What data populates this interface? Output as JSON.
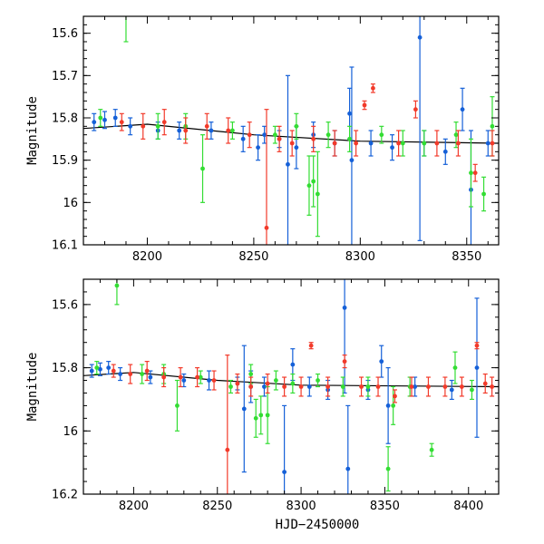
{
  "colors": {
    "blue": "#1560d8",
    "green": "#33dd33",
    "red": "#f23a2a",
    "axis": "#000000"
  },
  "chart_data": [
    {
      "type": "scatter",
      "panel": "top",
      "title": "",
      "xlabel": "",
      "ylabel": "Magnitude",
      "xlim": [
        8170,
        8365
      ],
      "ylim": [
        15.56,
        16.1
      ],
      "y_inverted": true,
      "xticks": [
        8200,
        8250,
        8300,
        8350
      ],
      "yticks": [
        15.6,
        15.7,
        15.8,
        15.9,
        16,
        16.1
      ],
      "ytick_labels": [
        "15.6",
        "15.7",
        "15.8",
        "15.9",
        "16",
        "16.1"
      ],
      "grid": false,
      "legend": "none",
      "trend": {
        "x": [
          8170,
          8200,
          8250,
          8300,
          8365
        ],
        "y": [
          15.825,
          15.815,
          15.84,
          15.855,
          15.86
        ]
      },
      "series": [
        {
          "color_key": "blue",
          "x": [
            8175,
            8180,
            8185,
            8192,
            8205,
            8215,
            8230,
            8245,
            8252,
            8255,
            8262,
            8266,
            8270,
            8278,
            8288,
            8295,
            8296,
            8305,
            8315,
            8328,
            8330,
            8340,
            8348,
            8352,
            8360
          ],
          "y": [
            15.81,
            15.805,
            15.8,
            15.82,
            15.83,
            15.83,
            15.83,
            15.85,
            15.87,
            15.84,
            15.85,
            15.91,
            15.87,
            15.84,
            15.86,
            15.79,
            15.9,
            15.86,
            15.87,
            15.61,
            15.86,
            15.88,
            15.78,
            15.97,
            15.86
          ],
          "err": [
            0.02,
            0.02,
            0.02,
            0.02,
            0.02,
            0.02,
            0.02,
            0.03,
            0.03,
            0.02,
            0.02,
            0.21,
            0.05,
            0.03,
            0.03,
            0.06,
            0.22,
            0.03,
            0.03,
            0.48,
            0.03,
            0.03,
            0.05,
            0.14,
            0.03
          ]
        },
        {
          "color_key": "green",
          "x": [
            8178,
            8190,
            8205,
            8218,
            8226,
            8240,
            8260,
            8270,
            8276,
            8278,
            8280,
            8285,
            8295,
            8310,
            8320,
            8330,
            8345,
            8352,
            8358,
            8362
          ],
          "y": [
            15.8,
            15.55,
            15.82,
            15.82,
            15.92,
            15.83,
            15.84,
            15.82,
            15.96,
            15.95,
            15.98,
            15.84,
            15.85,
            15.84,
            15.86,
            15.86,
            15.84,
            15.93,
            15.98,
            15.82
          ],
          "err": [
            0.02,
            0.07,
            0.03,
            0.03,
            0.08,
            0.02,
            0.02,
            0.03,
            0.07,
            0.06,
            0.1,
            0.03,
            0.03,
            0.02,
            0.03,
            0.03,
            0.03,
            0.08,
            0.04,
            0.07
          ]
        },
        {
          "color_key": "red",
          "x": [
            8188,
            8198,
            8208,
            8218,
            8228,
            8238,
            8248,
            8256,
            8262,
            8268,
            8278,
            8288,
            8298,
            8302,
            8306,
            8318,
            8326,
            8336,
            8346,
            8354,
            8362
          ],
          "y": [
            15.81,
            15.82,
            15.81,
            15.83,
            15.82,
            15.83,
            15.84,
            16.06,
            15.85,
            15.86,
            15.85,
            15.86,
            15.86,
            15.77,
            15.73,
            15.86,
            15.78,
            15.86,
            15.86,
            15.93,
            15.86
          ],
          "err": [
            0.02,
            0.03,
            0.03,
            0.03,
            0.03,
            0.03,
            0.03,
            0.28,
            0.03,
            0.03,
            0.03,
            0.03,
            0.03,
            0.01,
            0.01,
            0.03,
            0.02,
            0.03,
            0.03,
            0.02,
            0.03
          ]
        }
      ]
    },
    {
      "type": "scatter",
      "panel": "bottom",
      "title": "",
      "xlabel": "HJD−2450000",
      "ylabel": "Magnitude",
      "xlim": [
        8170,
        8418
      ],
      "ylim": [
        15.52,
        16.2
      ],
      "y_inverted": true,
      "xticks": [
        8200,
        8250,
        8300,
        8350,
        8400
      ],
      "yticks": [
        15.6,
        15.8,
        16,
        16.2
      ],
      "ytick_labels": [
        "15.6",
        "15.8",
        "16",
        "16.2"
      ],
      "grid": false,
      "legend": "none",
      "trend": {
        "x": [
          8170,
          8200,
          8250,
          8300,
          8418
        ],
        "y": [
          15.825,
          15.815,
          15.84,
          15.855,
          15.86
        ]
      },
      "series": [
        {
          "color_key": "blue",
          "x": [
            8175,
            8180,
            8185,
            8192,
            8210,
            8230,
            8245,
            8262,
            8266,
            8270,
            8278,
            8290,
            8295,
            8305,
            8316,
            8326,
            8328,
            8340,
            8348,
            8352,
            8368,
            8390,
            8405
          ],
          "y": [
            15.81,
            15.805,
            15.8,
            15.82,
            15.83,
            15.84,
            15.84,
            15.85,
            15.93,
            15.86,
            15.86,
            16.13,
            15.79,
            15.86,
            15.87,
            15.61,
            16.12,
            15.87,
            15.78,
            15.92,
            15.86,
            15.87,
            15.8
          ],
          "err": [
            0.02,
            0.02,
            0.02,
            0.02,
            0.02,
            0.02,
            0.03,
            0.02,
            0.2,
            0.05,
            0.03,
            0.21,
            0.05,
            0.03,
            0.03,
            0.27,
            0.2,
            0.03,
            0.05,
            0.12,
            0.03,
            0.03,
            0.22
          ]
        },
        {
          "color_key": "green",
          "x": [
            8178,
            8190,
            8205,
            8218,
            8226,
            8240,
            8258,
            8270,
            8273,
            8276,
            8280,
            8285,
            8295,
            8310,
            8325,
            8340,
            8352,
            8355,
            8365,
            8378,
            8392,
            8402
          ],
          "y": [
            15.8,
            15.54,
            15.82,
            15.82,
            15.92,
            15.83,
            15.86,
            15.82,
            15.96,
            15.95,
            15.95,
            15.84,
            15.85,
            15.84,
            15.86,
            15.86,
            16.12,
            15.92,
            15.86,
            16.06,
            15.8,
            15.87
          ],
          "err": [
            0.02,
            0.06,
            0.03,
            0.03,
            0.08,
            0.02,
            0.02,
            0.03,
            0.06,
            0.06,
            0.09,
            0.03,
            0.03,
            0.02,
            0.03,
            0.03,
            0.07,
            0.06,
            0.03,
            0.02,
            0.05,
            0.03
          ]
        },
        {
          "color_key": "red",
          "x": [
            8188,
            8198,
            8208,
            8218,
            8228,
            8238,
            8248,
            8256,
            8262,
            8270,
            8280,
            8290,
            8300,
            8306,
            8316,
            8326,
            8336,
            8346,
            8356,
            8366,
            8376,
            8386,
            8396,
            8405,
            8410,
            8414
          ],
          "y": [
            15.81,
            15.82,
            15.81,
            15.83,
            15.83,
            15.83,
            15.84,
            16.06,
            15.85,
            15.86,
            15.85,
            15.86,
            15.86,
            15.73,
            15.86,
            15.78,
            15.86,
            15.86,
            15.89,
            15.86,
            15.86,
            15.86,
            15.86,
            15.73,
            15.85,
            15.86
          ],
          "err": [
            0.02,
            0.03,
            0.03,
            0.03,
            0.03,
            0.03,
            0.03,
            0.3,
            0.03,
            0.03,
            0.03,
            0.03,
            0.03,
            0.01,
            0.03,
            0.02,
            0.03,
            0.03,
            0.02,
            0.03,
            0.03,
            0.03,
            0.03,
            0.01,
            0.03,
            0.03
          ]
        }
      ]
    }
  ]
}
